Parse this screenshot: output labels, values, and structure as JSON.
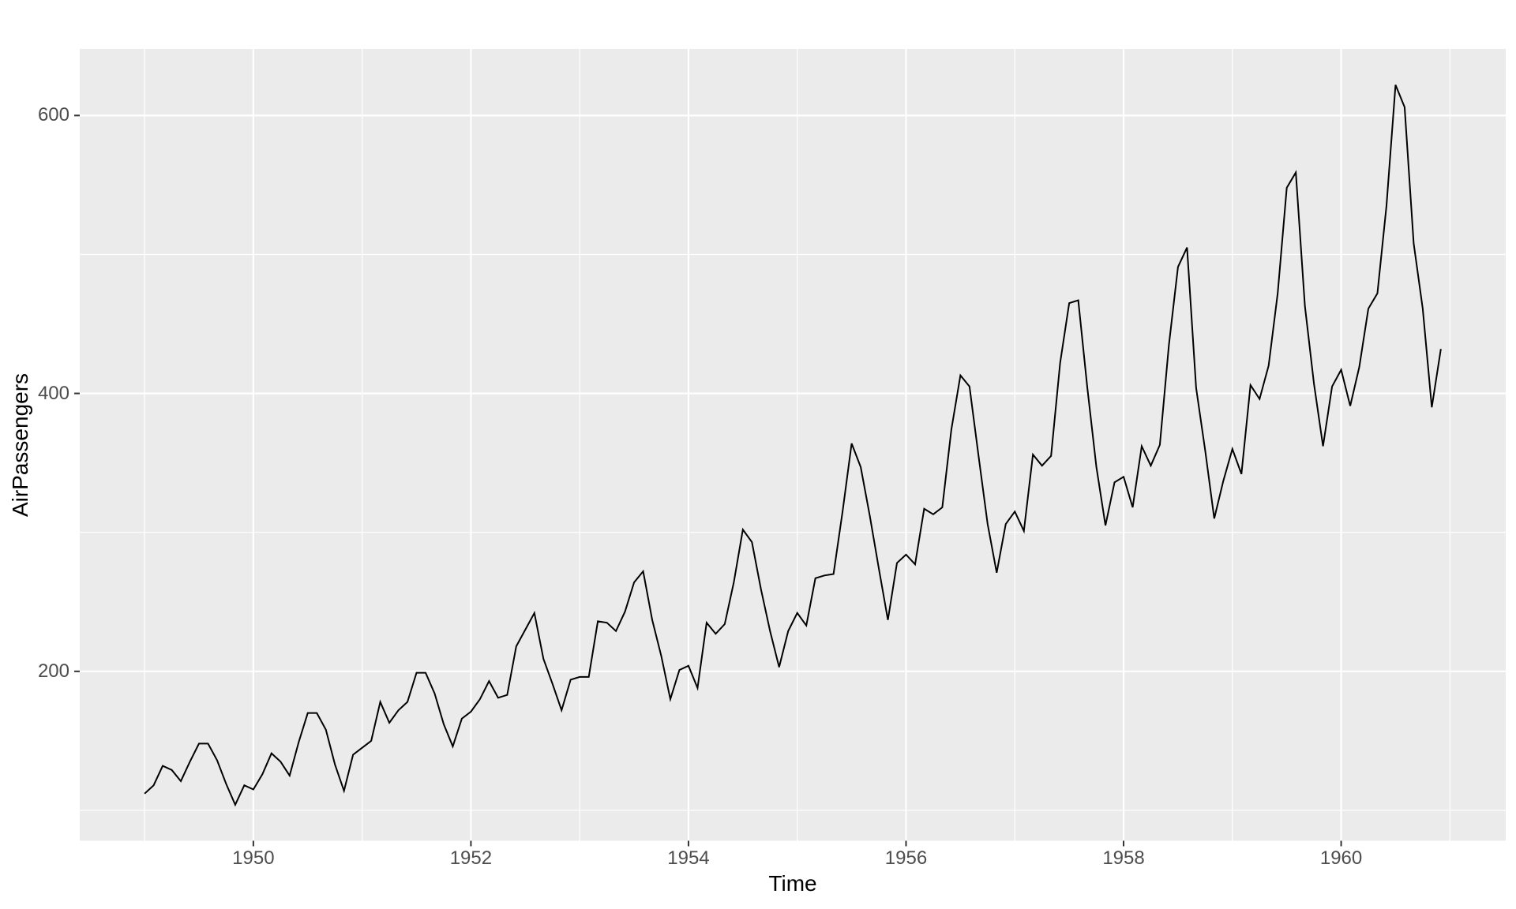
{
  "chart_data": {
    "type": "line",
    "xlabel": "Time",
    "ylabel": "AirPassengers",
    "grid": true,
    "legend": false,
    "x_axis": {
      "lim": [
        1948.404,
        1961.513
      ],
      "tick_values": [
        1950,
        1952,
        1954,
        1956,
        1958,
        1960
      ],
      "tick_labels": [
        "1950",
        "1952",
        "1954",
        "1956",
        "1958",
        "1960"
      ],
      "minor_values": [
        1949,
        1951,
        1953,
        1955,
        1957,
        1959,
        1961
      ]
    },
    "y_axis": {
      "lim": [
        78.1,
        647.9
      ],
      "tick_values": [
        200,
        400,
        600
      ],
      "tick_labels": [
        "200",
        "400",
        "600"
      ],
      "minor_values": [
        100,
        300,
        500
      ]
    },
    "x": {
      "start": 1949,
      "frequency": 12
    },
    "series": [
      {
        "name": "AirPassengers",
        "color": "#000000",
        "values": [
          112,
          118,
          132,
          129,
          121,
          135,
          148,
          148,
          136,
          119,
          104,
          118,
          115,
          126,
          141,
          135,
          125,
          149,
          170,
          170,
          158,
          133,
          114,
          140,
          145,
          150,
          178,
          163,
          172,
          178,
          199,
          199,
          184,
          162,
          146,
          166,
          171,
          180,
          193,
          181,
          183,
          218,
          230,
          242,
          209,
          191,
          172,
          194,
          196,
          196,
          236,
          235,
          229,
          243,
          264,
          272,
          237,
          211,
          180,
          201,
          204,
          188,
          235,
          227,
          234,
          264,
          302,
          293,
          259,
          229,
          203,
          229,
          242,
          233,
          267,
          269,
          270,
          315,
          364,
          347,
          312,
          274,
          237,
          278,
          284,
          277,
          317,
          313,
          318,
          374,
          413,
          405,
          355,
          306,
          271,
          306,
          315,
          301,
          356,
          348,
          355,
          422,
          465,
          467,
          404,
          347,
          305,
          336,
          340,
          318,
          362,
          348,
          363,
          435,
          491,
          505,
          404,
          359,
          310,
          337,
          360,
          342,
          406,
          396,
          420,
          472,
          548,
          559,
          463,
          407,
          362,
          405,
          417,
          391,
          419,
          461,
          472,
          535,
          622,
          606,
          508,
          461,
          390,
          432
        ]
      }
    ],
    "style": {
      "figure_bg": "#ffffff",
      "panel_bg": "#ebebeb",
      "grid_color": "#ffffff",
      "tick_mark_color": "#333333",
      "tick_label_color": "#4d4d4d",
      "axis_title_color": "#000000",
      "line_color": "#000000"
    }
  }
}
